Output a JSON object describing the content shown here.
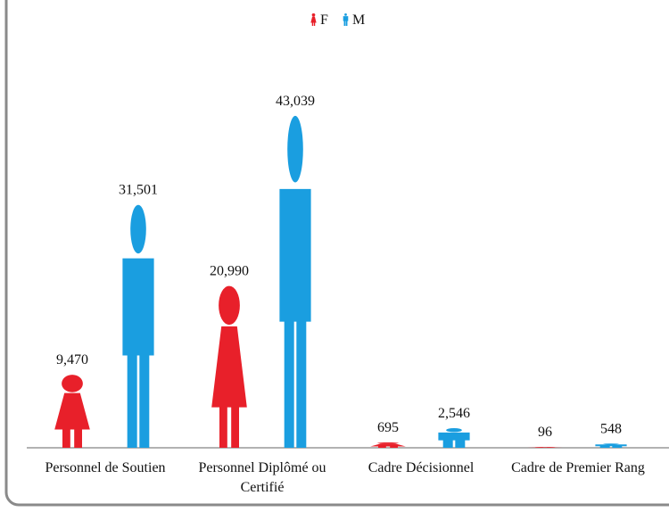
{
  "chart_data": {
    "type": "pictograph",
    "categories": [
      "Personnel de Soutien",
      "Personnel Diplômé ou Certifié",
      "Cadre Décisionnel",
      "Cadre de Premier Rang"
    ],
    "series": [
      {
        "name": "F",
        "color": "#e8202a",
        "values": [
          9470,
          20990,
          695,
          96
        ],
        "value_labels": [
          "9,470",
          "20,990",
          "695",
          "96"
        ]
      },
      {
        "name": "M",
        "color": "#1a9ee0",
        "values": [
          31501,
          43039,
          2546,
          548
        ],
        "value_labels": [
          "31,501",
          "43,039",
          "2,546",
          "548"
        ]
      }
    ]
  }
}
